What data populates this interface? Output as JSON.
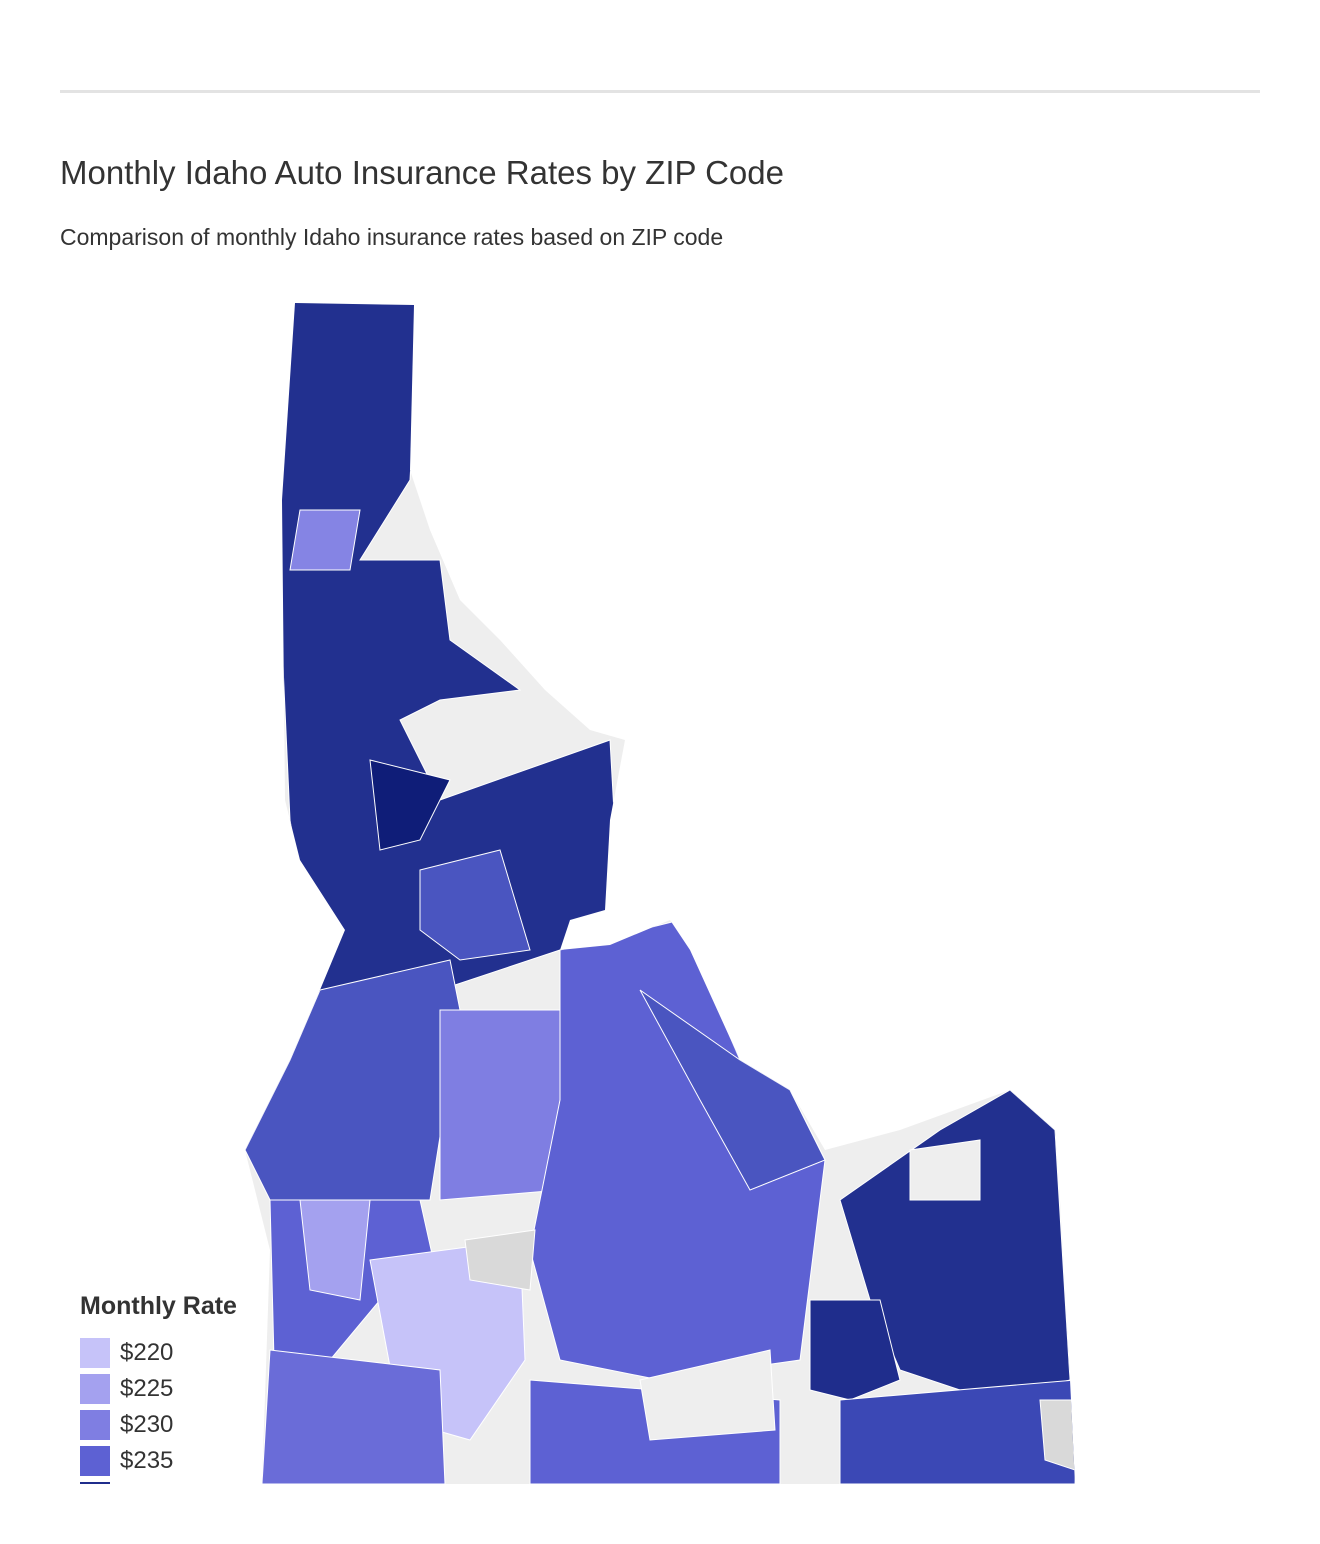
{
  "header": {
    "title": "Monthly Idaho Auto Insurance Rates by ZIP Code",
    "subtitle": "Comparison of monthly Idaho insurance rates based on ZIP code"
  },
  "legend": {
    "title": "Monthly Rate",
    "items": [
      {
        "label": "$220",
        "color": "#c6c3f9"
      },
      {
        "label": "$225",
        "color": "#a4a1ef"
      },
      {
        "label": "$230",
        "color": "#7f7ee2"
      },
      {
        "label": "$235",
        "color": "#5d61d3"
      },
      {
        "color": "#1f2d8c"
      }
    ]
  }
}
